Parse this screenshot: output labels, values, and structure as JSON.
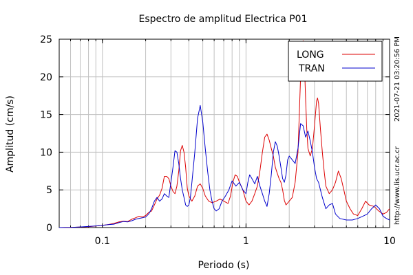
{
  "chart_data": {
    "type": "line",
    "title": "Espectro de amplitud Electrica P01",
    "xlabel": "Periodo (s)",
    "ylabel": "Amplitud (cm/s)",
    "xscale": "log",
    "xlim": [
      0.05,
      10
    ],
    "ylim": [
      0,
      25
    ],
    "xticks": [
      {
        "value": 0.1,
        "label": "0.1"
      },
      {
        "value": 1,
        "label": "1"
      },
      {
        "value": 10,
        "label": "10"
      }
    ],
    "yticks": [
      {
        "value": 0,
        "label": "0"
      },
      {
        "value": 5,
        "label": "5"
      },
      {
        "value": 10,
        "label": "10"
      },
      {
        "value": 15,
        "label": "15"
      },
      {
        "value": 20,
        "label": "20"
      },
      {
        "value": 25,
        "label": "25"
      }
    ],
    "grid": true,
    "legend_position": "top-right",
    "timestamp": "2021-07-21 03:20:56 PM",
    "website": "http://www.lis.ucr.ac.cr",
    "series": [
      {
        "name": "LONG",
        "color": "#dd0000",
        "points": [
          [
            0.05,
            0.0
          ],
          [
            0.06,
            0.02
          ],
          [
            0.07,
            0.06
          ],
          [
            0.08,
            0.12
          ],
          [
            0.09,
            0.2
          ],
          [
            0.1,
            0.3
          ],
          [
            0.11,
            0.4
          ],
          [
            0.12,
            0.55
          ],
          [
            0.13,
            0.75
          ],
          [
            0.14,
            0.85
          ],
          [
            0.15,
            0.8
          ],
          [
            0.16,
            1.1
          ],
          [
            0.17,
            1.3
          ],
          [
            0.18,
            1.5
          ],
          [
            0.19,
            1.4
          ],
          [
            0.2,
            1.6
          ],
          [
            0.21,
            2.0
          ],
          [
            0.22,
            2.2
          ],
          [
            0.23,
            3.0
          ],
          [
            0.24,
            3.8
          ],
          [
            0.25,
            4.3
          ],
          [
            0.26,
            5.2
          ],
          [
            0.27,
            6.8
          ],
          [
            0.28,
            6.8
          ],
          [
            0.29,
            6.5
          ],
          [
            0.3,
            5.5
          ],
          [
            0.31,
            4.8
          ],
          [
            0.32,
            4.5
          ],
          [
            0.33,
            5.5
          ],
          [
            0.34,
            7.5
          ],
          [
            0.35,
            10.2
          ],
          [
            0.36,
            10.9
          ],
          [
            0.37,
            10.0
          ],
          [
            0.38,
            8.0
          ],
          [
            0.39,
            5.2
          ],
          [
            0.4,
            4.2
          ],
          [
            0.42,
            3.5
          ],
          [
            0.44,
            4.2
          ],
          [
            0.46,
            5.5
          ],
          [
            0.48,
            5.8
          ],
          [
            0.5,
            5.2
          ],
          [
            0.52,
            4.2
          ],
          [
            0.55,
            3.5
          ],
          [
            0.58,
            3.3
          ],
          [
            0.62,
            3.5
          ],
          [
            0.66,
            3.8
          ],
          [
            0.7,
            3.5
          ],
          [
            0.75,
            3.2
          ],
          [
            0.78,
            4.2
          ],
          [
            0.81,
            6.0
          ],
          [
            0.84,
            7.0
          ],
          [
            0.87,
            6.8
          ],
          [
            0.9,
            6.0
          ],
          [
            0.95,
            5.0
          ],
          [
            1.0,
            3.5
          ],
          [
            1.05,
            3.0
          ],
          [
            1.1,
            3.5
          ],
          [
            1.15,
            4.5
          ],
          [
            1.2,
            5.5
          ],
          [
            1.25,
            7.5
          ],
          [
            1.3,
            10.0
          ],
          [
            1.35,
            12.0
          ],
          [
            1.4,
            12.4
          ],
          [
            1.45,
            11.6
          ],
          [
            1.5,
            10.5
          ],
          [
            1.55,
            9.5
          ],
          [
            1.6,
            8.0
          ],
          [
            1.65,
            7.2
          ],
          [
            1.7,
            6.5
          ],
          [
            1.75,
            6.0
          ],
          [
            1.8,
            5.0
          ],
          [
            1.85,
            3.6
          ],
          [
            1.9,
            3.0
          ],
          [
            2.0,
            3.5
          ],
          [
            2.1,
            4.0
          ],
          [
            2.2,
            6.0
          ],
          [
            2.3,
            10.0
          ],
          [
            2.4,
            20.0
          ],
          [
            2.45,
            24.5
          ],
          [
            2.5,
            24.8
          ],
          [
            2.55,
            22.0
          ],
          [
            2.6,
            17.0
          ],
          [
            2.65,
            13.0
          ],
          [
            2.7,
            10.5
          ],
          [
            2.8,
            9.5
          ],
          [
            2.9,
            10.5
          ],
          [
            3.0,
            13.5
          ],
          [
            3.1,
            16.8
          ],
          [
            3.15,
            17.2
          ],
          [
            3.2,
            16.5
          ],
          [
            3.3,
            13.0
          ],
          [
            3.4,
            10.0
          ],
          [
            3.5,
            7.5
          ],
          [
            3.6,
            5.5
          ],
          [
            3.8,
            4.5
          ],
          [
            4.0,
            5.0
          ],
          [
            4.2,
            6.0
          ],
          [
            4.4,
            7.5
          ],
          [
            4.6,
            6.5
          ],
          [
            4.8,
            5.0
          ],
          [
            5.0,
            3.5
          ],
          [
            5.3,
            2.5
          ],
          [
            5.6,
            1.8
          ],
          [
            6.0,
            1.6
          ],
          [
            6.4,
            2.5
          ],
          [
            6.8,
            3.5
          ],
          [
            7.2,
            3.0
          ],
          [
            7.8,
            2.8
          ],
          [
            8.4,
            2.2
          ],
          [
            9.0,
            1.8
          ],
          [
            9.5,
            2.0
          ],
          [
            10.0,
            2.5
          ]
        ]
      },
      {
        "name": "TRAN",
        "color": "#0000cc",
        "points": [
          [
            0.05,
            0.0
          ],
          [
            0.06,
            0.02
          ],
          [
            0.07,
            0.08
          ],
          [
            0.08,
            0.15
          ],
          [
            0.09,
            0.22
          ],
          [
            0.1,
            0.3
          ],
          [
            0.11,
            0.38
          ],
          [
            0.12,
            0.45
          ],
          [
            0.13,
            0.65
          ],
          [
            0.14,
            0.8
          ],
          [
            0.15,
            0.75
          ],
          [
            0.16,
            0.9
          ],
          [
            0.17,
            1.1
          ],
          [
            0.18,
            1.2
          ],
          [
            0.19,
            1.3
          ],
          [
            0.2,
            1.4
          ],
          [
            0.21,
            1.8
          ],
          [
            0.22,
            2.5
          ],
          [
            0.23,
            3.5
          ],
          [
            0.24,
            4.0
          ],
          [
            0.25,
            3.5
          ],
          [
            0.26,
            3.8
          ],
          [
            0.27,
            4.5
          ],
          [
            0.28,
            4.2
          ],
          [
            0.29,
            4.0
          ],
          [
            0.3,
            6.0
          ],
          [
            0.31,
            8.0
          ],
          [
            0.32,
            10.2
          ],
          [
            0.33,
            10.0
          ],
          [
            0.34,
            8.5
          ],
          [
            0.35,
            6.5
          ],
          [
            0.36,
            5.0
          ],
          [
            0.37,
            4.0
          ],
          [
            0.38,
            3.0
          ],
          [
            0.39,
            2.8
          ],
          [
            0.4,
            3.0
          ],
          [
            0.41,
            4.0
          ],
          [
            0.42,
            6.0
          ],
          [
            0.44,
            10.0
          ],
          [
            0.46,
            14.5
          ],
          [
            0.48,
            16.2
          ],
          [
            0.5,
            14.0
          ],
          [
            0.52,
            10.5
          ],
          [
            0.54,
            7.5
          ],
          [
            0.56,
            5.0
          ],
          [
            0.58,
            3.5
          ],
          [
            0.6,
            2.5
          ],
          [
            0.62,
            2.2
          ],
          [
            0.65,
            2.5
          ],
          [
            0.68,
            3.5
          ],
          [
            0.72,
            4.2
          ],
          [
            0.76,
            5.0
          ],
          [
            0.8,
            6.2
          ],
          [
            0.85,
            5.5
          ],
          [
            0.9,
            6.0
          ],
          [
            0.95,
            5.0
          ],
          [
            1.0,
            4.5
          ],
          [
            1.03,
            6.0
          ],
          [
            1.06,
            7.0
          ],
          [
            1.1,
            6.5
          ],
          [
            1.15,
            5.8
          ],
          [
            1.2,
            6.8
          ],
          [
            1.25,
            5.5
          ],
          [
            1.3,
            4.5
          ],
          [
            1.35,
            3.5
          ],
          [
            1.4,
            2.8
          ],
          [
            1.45,
            4.5
          ],
          [
            1.5,
            7.0
          ],
          [
            1.55,
            10.0
          ],
          [
            1.6,
            11.4
          ],
          [
            1.65,
            10.8
          ],
          [
            1.7,
            9.5
          ],
          [
            1.75,
            8.0
          ],
          [
            1.8,
            6.5
          ],
          [
            1.85,
            6.0
          ],
          [
            1.9,
            7.0
          ],
          [
            1.95,
            9.0
          ],
          [
            2.0,
            9.5
          ],
          [
            2.1,
            9.0
          ],
          [
            2.2,
            8.5
          ],
          [
            2.3,
            10.5
          ],
          [
            2.4,
            13.8
          ],
          [
            2.5,
            13.5
          ],
          [
            2.6,
            12.0
          ],
          [
            2.7,
            12.8
          ],
          [
            2.8,
            11.5
          ],
          [
            2.9,
            10.0
          ],
          [
            3.0,
            8.0
          ],
          [
            3.1,
            6.5
          ],
          [
            3.2,
            6.0
          ],
          [
            3.4,
            4.0
          ],
          [
            3.6,
            2.5
          ],
          [
            3.8,
            3.0
          ],
          [
            4.0,
            3.2
          ],
          [
            4.2,
            1.8
          ],
          [
            4.5,
            1.2
          ],
          [
            5.0,
            1.0
          ],
          [
            5.5,
            1.0
          ],
          [
            6.0,
            1.2
          ],
          [
            6.5,
            1.5
          ],
          [
            7.0,
            1.8
          ],
          [
            7.5,
            2.5
          ],
          [
            8.0,
            3.0
          ],
          [
            8.5,
            2.5
          ],
          [
            9.0,
            1.5
          ],
          [
            9.5,
            1.2
          ],
          [
            10.0,
            1.0
          ]
        ]
      }
    ]
  }
}
